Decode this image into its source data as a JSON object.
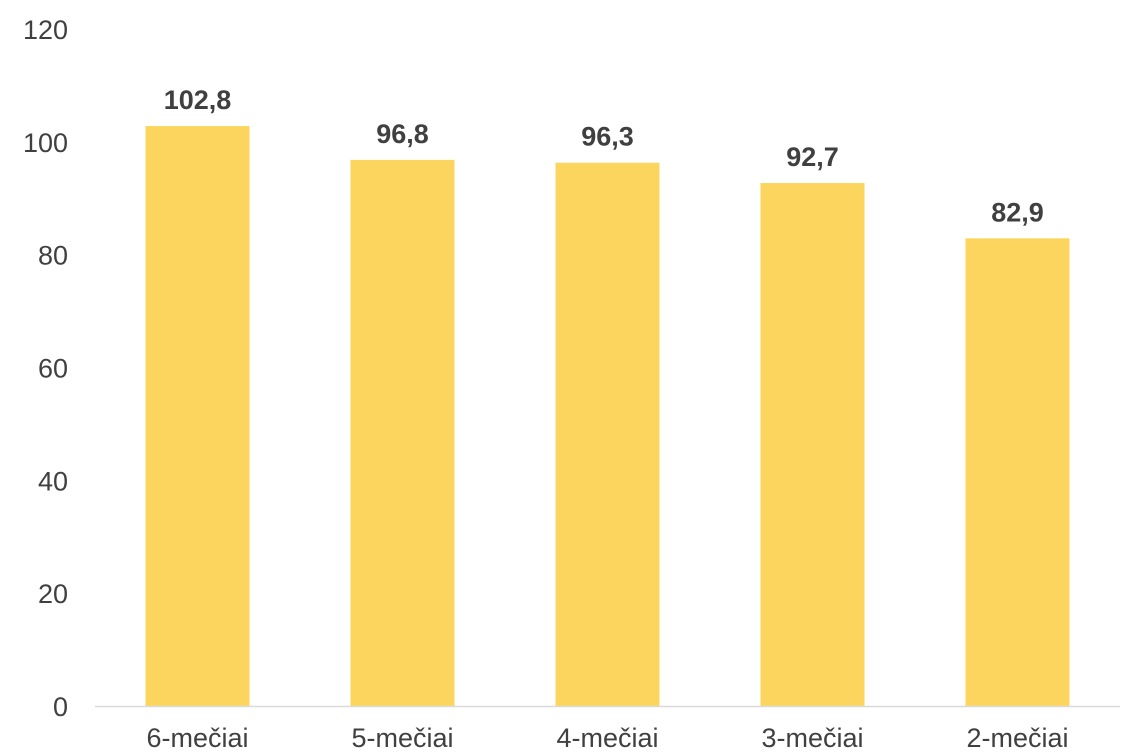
{
  "chart_data": {
    "type": "bar",
    "categories": [
      "6-mečiai",
      "5-mečiai",
      "4-mečiai",
      "3-mečiai",
      "2-mečiai"
    ],
    "values": [
      102.8,
      96.8,
      96.3,
      92.7,
      82.9
    ],
    "data_labels": [
      "102,8",
      "96,8",
      "96,3",
      "92,7",
      "82,9"
    ],
    "ylim": [
      0,
      120
    ],
    "yticks": [
      0,
      20,
      40,
      60,
      80,
      100,
      120
    ],
    "grid": false,
    "legend": "none",
    "bar_color": "#FCD55F",
    "axis_color": "#D9D9D9",
    "text_color": "#404040"
  }
}
